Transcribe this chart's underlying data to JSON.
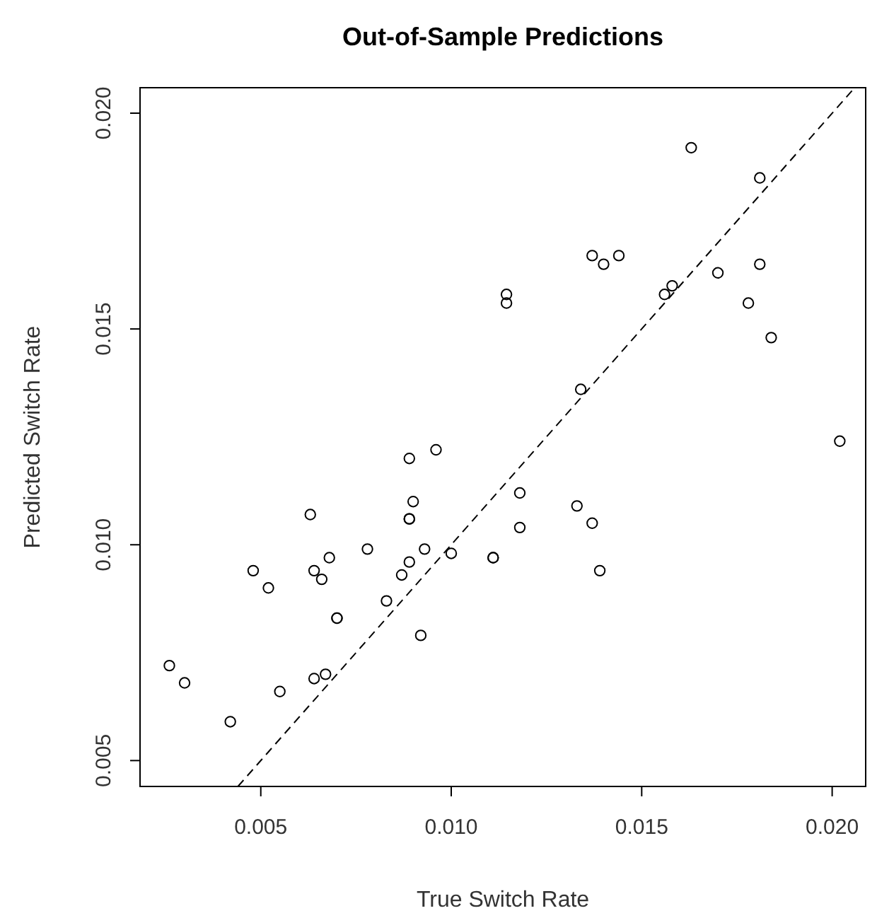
{
  "chart_data": {
    "type": "scatter",
    "title": "Out-of-Sample Predictions",
    "xlabel": "True Switch Rate",
    "ylabel": "Predicted Switch Rate",
    "xlim": [
      0.00183,
      0.02088
    ],
    "ylim": [
      0.0044,
      0.02059
    ],
    "xticks": [
      {
        "value": 0.005,
        "label": "0.005"
      },
      {
        "value": 0.01,
        "label": "0.010"
      },
      {
        "value": 0.015,
        "label": "0.015"
      },
      {
        "value": 0.02,
        "label": "0.020"
      }
    ],
    "yticks": [
      {
        "value": 0.005,
        "label": "0.005"
      },
      {
        "value": 0.01,
        "label": "0.010"
      },
      {
        "value": 0.015,
        "label": "0.015"
      },
      {
        "value": 0.02,
        "label": "0.020"
      }
    ],
    "series": [
      {
        "color": "#000000",
        "marker": "circle",
        "x": [
          0.0163,
          0.0181,
          0.0137,
          0.014,
          0.0144,
          0.01145,
          0.01145,
          0.0156,
          0.0158,
          0.017,
          0.0181,
          0.0178,
          0.0184,
          0.0134,
          0.0202,
          0.0089,
          0.0096,
          0.009,
          0.0089,
          0.0089,
          0.0063,
          0.0118,
          0.0133,
          0.0137,
          0.0118,
          0.0078,
          0.0093,
          0.01,
          0.0068,
          0.0111,
          0.0111,
          0.0089,
          0.0048,
          0.0064,
          0.0066,
          0.0087,
          0.0139,
          0.0052,
          0.0083,
          0.007,
          0.007,
          0.0092,
          0.0026,
          0.003,
          0.0055,
          0.0064,
          0.0067,
          0.0042
        ],
        "values": [
          0.0192,
          0.0185,
          0.0167,
          0.0165,
          0.0167,
          0.0158,
          0.0156,
          0.0158,
          0.016,
          0.0163,
          0.0165,
          0.0156,
          0.0148,
          0.0136,
          0.0124,
          0.012,
          0.0122,
          0.011,
          0.0106,
          0.0106,
          0.0107,
          0.0112,
          0.0109,
          0.0105,
          0.0104,
          0.0099,
          0.0099,
          0.0098,
          0.0097,
          0.0097,
          0.0097,
          0.0096,
          0.0094,
          0.0094,
          0.0092,
          0.0093,
          0.0094,
          0.009,
          0.0087,
          0.0083,
          0.0083,
          0.0079,
          0.0072,
          0.0068,
          0.0066,
          0.0069,
          0.007,
          0.0059
        ]
      },
      {
        "type": "line",
        "color": "#000000",
        "marker": "none",
        "line_style": "dashed",
        "x": [
          0.0044,
          0.02059
        ],
        "values": [
          0.0044,
          0.02059
        ]
      }
    ]
  }
}
